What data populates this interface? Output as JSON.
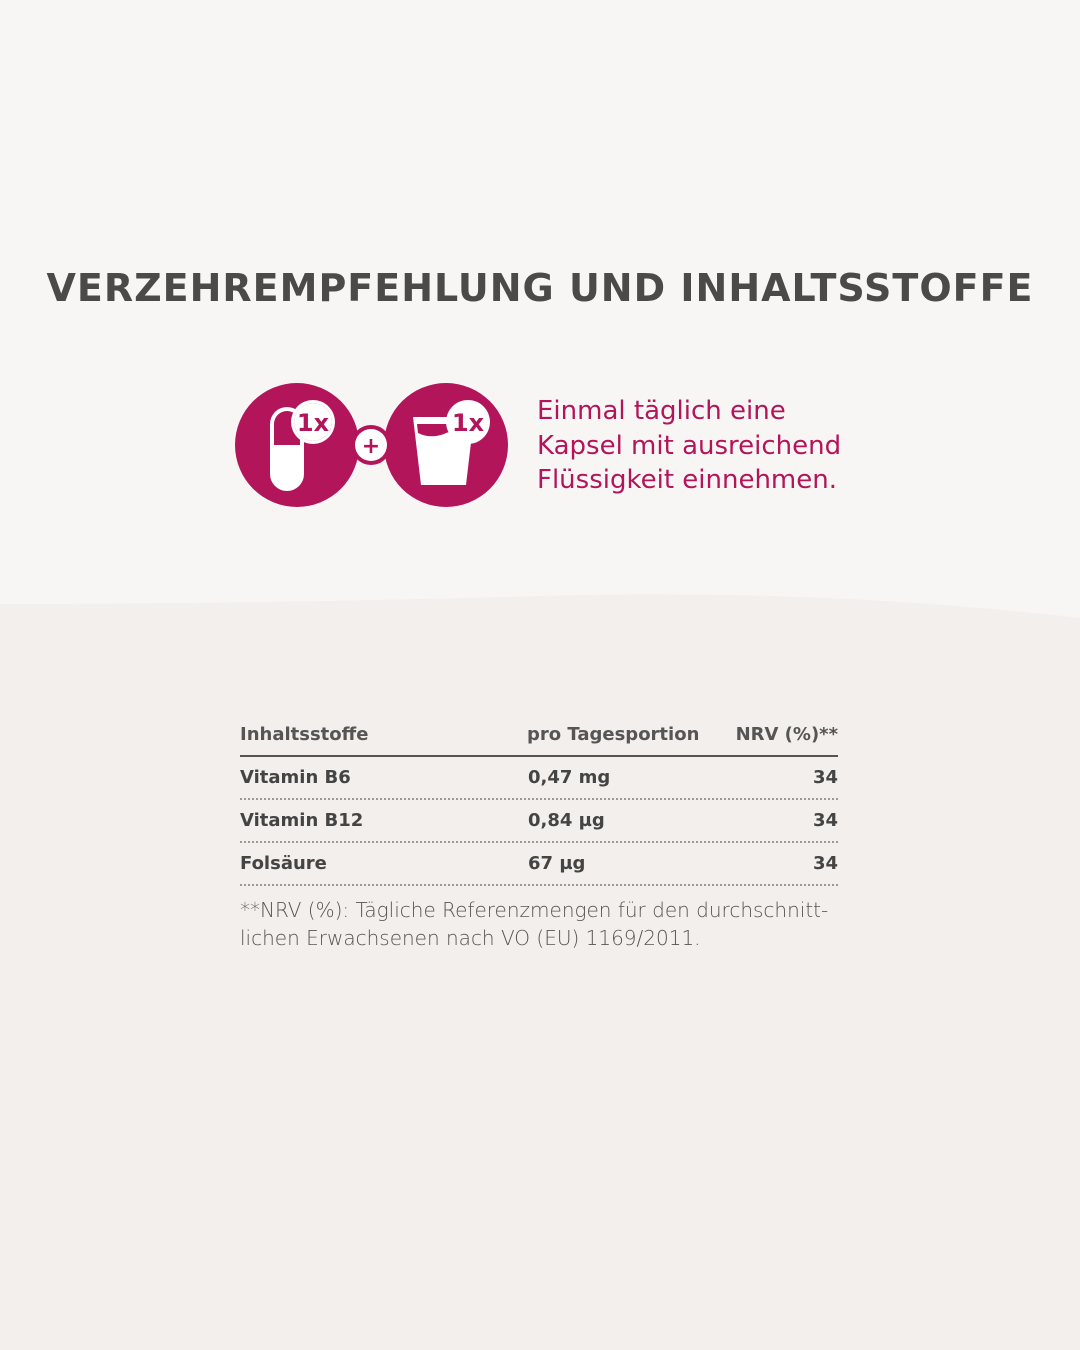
{
  "colors": {
    "accent": "#b3155a",
    "text": "#4a4a4a",
    "background": "#f2efec"
  },
  "title": "VERZEHREMPFEHLUNG UND INHALTSSTOFFE",
  "dosage": {
    "icons": [
      "capsule-icon",
      "plus-icon",
      "water-glass-icon"
    ],
    "capsule_badge": "1x",
    "plus": "+",
    "glass_badge": "1x",
    "lines": [
      "Einmal täglich eine",
      "Kapsel mit ausreichend",
      "Flüssigkeit einnehmen."
    ]
  },
  "table": {
    "headers": [
      "Inhaltsstoffe",
      "pro Tagesportion",
      "NRV (%)**"
    ],
    "rows": [
      [
        "Vitamin B6",
        "0,47 mg",
        "34"
      ],
      [
        "Vitamin B12",
        "0,84 µg",
        "34"
      ],
      [
        "Folsäure",
        "67 µg",
        "34"
      ]
    ]
  },
  "footnote": [
    "**NRV (%): Tägliche Referenzmengen für den durchschnitt-",
    "lichen Erwachsenen nach VO (EU) 1169/2011."
  ]
}
